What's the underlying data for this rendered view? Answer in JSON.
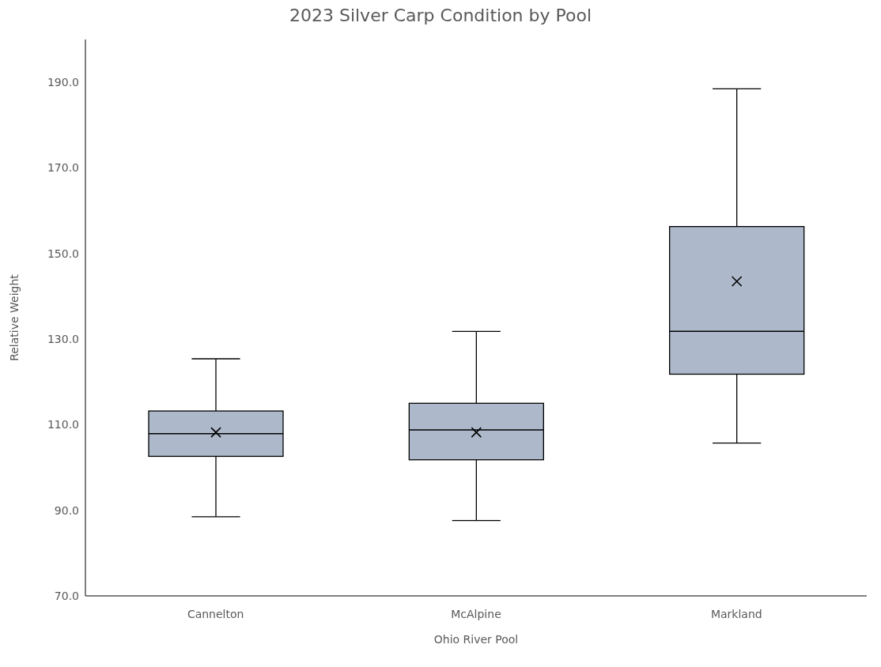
{
  "chart_data": {
    "type": "box",
    "title": "2023 Silver Carp Condition by Pool",
    "xlabel": "Ohio River Pool",
    "ylabel": "Relative Weight",
    "categories": [
      "Cannelton",
      "McAlpine",
      "Markland"
    ],
    "color": "#adb9ca",
    "boxes": [
      {
        "low": 88.5,
        "q1": 102.6,
        "median": 107.9,
        "q3": 113.2,
        "high": 125.4,
        "mean": 108.2
      },
      {
        "low": 87.6,
        "q1": 101.8,
        "median": 108.8,
        "q3": 115.0,
        "high": 131.8,
        "mean": 108.2
      },
      {
        "low": 105.7,
        "q1": 121.8,
        "median": 131.8,
        "q3": 156.3,
        "high": 188.5,
        "mean": 143.5
      }
    ],
    "ylim": [
      70,
      200
    ],
    "yticks": [
      {
        "value": 70,
        "label": "70.0"
      },
      {
        "value": 90,
        "label": "90.0"
      },
      {
        "value": 110,
        "label": "110.0"
      },
      {
        "value": 130,
        "label": "130.0"
      },
      {
        "value": 150,
        "label": "150.0"
      },
      {
        "value": 170,
        "label": "170.0"
      },
      {
        "value": 190,
        "label": "190.0"
      }
    ]
  }
}
